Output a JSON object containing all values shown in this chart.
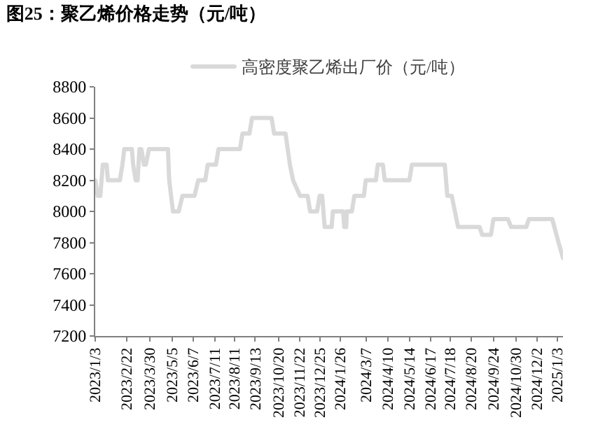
{
  "chart_data": {
    "type": "line",
    "title": "图25：聚乙烯价格走势（元/吨）",
    "x": [
      "2023-01-03",
      "2023-01-07",
      "2023-01-11",
      "2023-01-15",
      "2023-01-21",
      "2023-01-23",
      "2023-02-11",
      "2023-02-15",
      "2023-02-18",
      "2023-03-02",
      "2023-03-04",
      "2023-03-08",
      "2023-03-11",
      "2023-03-14",
      "2023-03-17",
      "2023-03-21",
      "2023-03-24",
      "2023-03-29",
      "2023-04-28",
      "2023-04-30",
      "2023-05-06",
      "2023-05-15",
      "2023-05-21",
      "2023-06-09",
      "2023-06-15",
      "2023-06-26",
      "2023-06-30",
      "2023-07-13",
      "2023-07-17",
      "2023-08-20",
      "2023-08-24",
      "2023-09-04",
      "2023-09-08",
      "2023-10-09",
      "2023-10-13",
      "2023-10-31",
      "2023-11-07",
      "2023-11-12",
      "2023-11-23",
      "2023-12-05",
      "2023-12-09",
      "2023-12-20",
      "2023-12-24",
      "2023-12-28",
      "2024-01-01",
      "2024-01-12",
      "2024-01-14",
      "2024-01-30",
      "2024-02-01",
      "2024-02-04",
      "2024-02-05",
      "2024-02-13",
      "2024-02-17",
      "2024-03-03",
      "2024-03-06",
      "2024-03-22",
      "2024-03-25",
      "2024-04-02",
      "2024-04-05",
      "2024-05-14",
      "2024-05-18",
      "2024-07-09",
      "2024-07-13",
      "2024-07-20",
      "2024-07-25",
      "2024-07-30",
      "2024-09-02",
      "2024-09-06",
      "2024-09-20",
      "2024-09-24",
      "2024-10-17",
      "2024-10-22",
      "2024-11-15",
      "2024-11-19",
      "2024-12-26",
      "2025-01-05",
      "2025-01-12"
    ],
    "series": [
      {
        "name": "高密度聚乙烯出厂价（元/吨）",
        "color": "#d9d9d9",
        "values": [
          8200,
          8100,
          8100,
          8300,
          8300,
          8200,
          8200,
          8300,
          8400,
          8400,
          8300,
          8200,
          8200,
          8400,
          8400,
          8300,
          8300,
          8400,
          8400,
          8200,
          8000,
          8000,
          8100,
          8100,
          8200,
          8200,
          8300,
          8300,
          8400,
          8400,
          8500,
          8500,
          8600,
          8600,
          8500,
          8500,
          8300,
          8200,
          8100,
          8100,
          8000,
          8000,
          8100,
          8100,
          7900,
          7900,
          8000,
          8000,
          7900,
          7900,
          8000,
          8000,
          8100,
          8100,
          8200,
          8200,
          8300,
          8300,
          8200,
          8200,
          8300,
          8300,
          8100,
          8100,
          8000,
          7900,
          7900,
          7850,
          7850,
          7950,
          7950,
          7900,
          7900,
          7950,
          7950,
          7800,
          7700
        ]
      }
    ],
    "xlim": [
      "2023-01-03",
      "2025-01-12"
    ],
    "xticks": [
      {
        "value": "2023-01-03",
        "label": "2023/1/3"
      },
      {
        "value": "2023-02-22",
        "label": "2023/2/22"
      },
      {
        "value": "2023-03-30",
        "label": "2023/3/30"
      },
      {
        "value": "2023-05-05",
        "label": "2023/5/5"
      },
      {
        "value": "2023-06-07",
        "label": "2023/6/7"
      },
      {
        "value": "2023-07-11",
        "label": "2023/7/11"
      },
      {
        "value": "2023-08-11",
        "label": "2023/8/11"
      },
      {
        "value": "2023-09-13",
        "label": "2023/9/13"
      },
      {
        "value": "2023-10-20",
        "label": "2023/10/20"
      },
      {
        "value": "2023-11-22",
        "label": "2023/11/22"
      },
      {
        "value": "2023-12-25",
        "label": "2023/12/25"
      },
      {
        "value": "2024-01-26",
        "label": "2024/1/26"
      },
      {
        "value": "2024-03-07",
        "label": "2024/3/7"
      },
      {
        "value": "2024-04-10",
        "label": "2024/4/10"
      },
      {
        "value": "2024-05-14",
        "label": "2024/5/14"
      },
      {
        "value": "2024-06-17",
        "label": "2024/6/17"
      },
      {
        "value": "2024-07-18",
        "label": "2024/7/18"
      },
      {
        "value": "2024-08-20",
        "label": "2024/8/20"
      },
      {
        "value": "2024-09-24",
        "label": "2024/9/24"
      },
      {
        "value": "2024-10-30",
        "label": "2024/10/30"
      },
      {
        "value": "2024-12-02",
        "label": "2024/12/2"
      },
      {
        "value": "2025-01-03",
        "label": "2025/1/3"
      }
    ],
    "ylim": [
      7200,
      8800
    ],
    "yticks": [
      7200,
      7400,
      7600,
      7800,
      8000,
      8200,
      8400,
      8600,
      8800
    ],
    "legend": "top",
    "line_style": "solid"
  }
}
